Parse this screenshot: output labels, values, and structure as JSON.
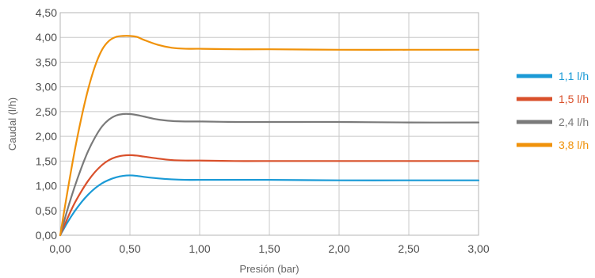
{
  "chart_data": {
    "type": "line",
    "xlabel": "Presión (bar)",
    "ylabel": "Caudal (l/h)",
    "xlim": [
      0,
      3
    ],
    "ylim": [
      0,
      4.5
    ],
    "x_ticks": [
      "0,00",
      "0,50",
      "1,00",
      "1,50",
      "2,00",
      "2,50",
      "3,00"
    ],
    "y_ticks": [
      "0,00",
      "0,50",
      "1,00",
      "1,50",
      "2,00",
      "2,50",
      "3,00",
      "3,50",
      "4,00",
      "4,50"
    ],
    "grid": true,
    "legend_position": "right",
    "x": [
      0,
      0.05,
      0.1,
      0.15,
      0.2,
      0.25,
      0.3,
      0.35,
      0.4,
      0.45,
      0.5,
      0.55,
      0.6,
      0.7,
      0.8,
      0.9,
      1.0,
      1.25,
      1.5,
      2.0,
      2.5,
      3.0
    ],
    "series": [
      {
        "name": "1,1 l/h",
        "color": "#1a9ad6",
        "values": [
          0,
          0.25,
          0.47,
          0.66,
          0.82,
          0.95,
          1.05,
          1.12,
          1.17,
          1.2,
          1.21,
          1.2,
          1.18,
          1.15,
          1.13,
          1.12,
          1.12,
          1.12,
          1.12,
          1.11,
          1.11,
          1.11
        ]
      },
      {
        "name": "1,5 l/h",
        "color": "#d9502b",
        "values": [
          0,
          0.33,
          0.63,
          0.88,
          1.1,
          1.28,
          1.42,
          1.52,
          1.58,
          1.61,
          1.62,
          1.61,
          1.59,
          1.55,
          1.52,
          1.51,
          1.51,
          1.5,
          1.5,
          1.5,
          1.5,
          1.5
        ]
      },
      {
        "name": "2,4 l/h",
        "color": "#7a7a7a",
        "values": [
          0,
          0.5,
          0.95,
          1.35,
          1.7,
          1.98,
          2.2,
          2.34,
          2.42,
          2.45,
          2.45,
          2.43,
          2.4,
          2.34,
          2.31,
          2.3,
          2.3,
          2.29,
          2.29,
          2.29,
          2.28,
          2.28
        ]
      },
      {
        "name": "3,8 l/h",
        "color": "#f0920a",
        "values": [
          0,
          0.85,
          1.65,
          2.35,
          2.95,
          3.42,
          3.75,
          3.93,
          4.01,
          4.03,
          4.03,
          4.01,
          3.95,
          3.85,
          3.79,
          3.77,
          3.77,
          3.76,
          3.76,
          3.75,
          3.75,
          3.75
        ]
      }
    ]
  }
}
